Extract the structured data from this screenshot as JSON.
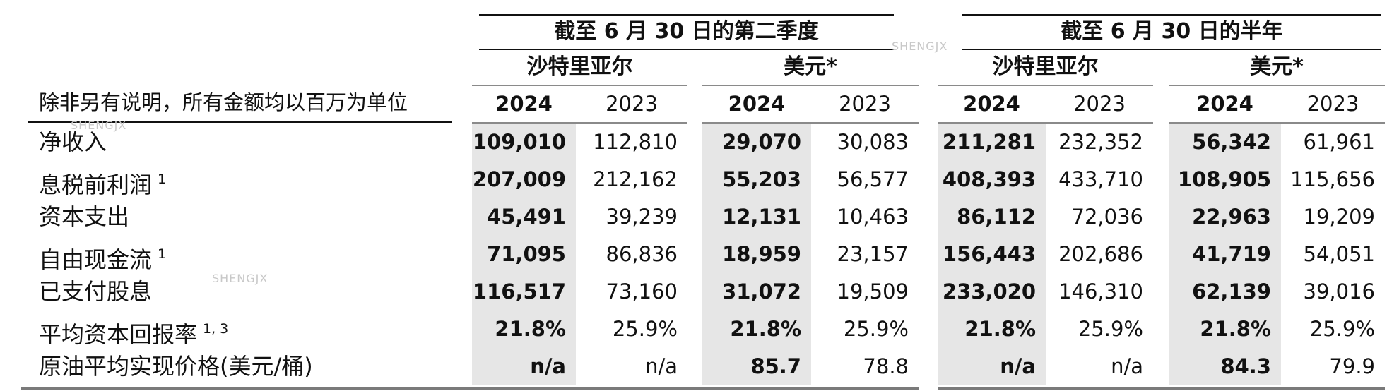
{
  "unit_note": "除非另有说明，所有金额均以百万为单位",
  "watermark": "SHENGJX",
  "groups": [
    {
      "title": "截至 6 月 30 日的第二季度",
      "currencies": [
        "沙特里亚尔",
        "美元*"
      ],
      "years": [
        "2024",
        "2023",
        "2024",
        "2023"
      ]
    },
    {
      "title": "截至 6 月 30 日的半年",
      "currencies": [
        "沙特里亚尔",
        "美元*"
      ],
      "years": [
        "2024",
        "2023",
        "2024",
        "2023"
      ]
    }
  ],
  "rows": [
    {
      "label": "净收入",
      "sup": "",
      "values": [
        "109,010",
        "112,810",
        "29,070",
        "30,083",
        "211,281",
        "232,352",
        "56,342",
        "61,961"
      ]
    },
    {
      "label": "息税前利润",
      "sup": "1",
      "values": [
        "207,009",
        "212,162",
        "55,203",
        "56,577",
        "408,393",
        "433,710",
        "108,905",
        "115,656"
      ]
    },
    {
      "label": "资本支出",
      "sup": "",
      "values": [
        "45,491",
        "39,239",
        "12,131",
        "10,463",
        "86,112",
        "72,036",
        "22,963",
        "19,209"
      ]
    },
    {
      "label": "自由现金流",
      "sup": "1",
      "values": [
        "71,095",
        "86,836",
        "18,959",
        "23,157",
        "156,443",
        "202,686",
        "41,719",
        "54,051"
      ]
    },
    {
      "label": "已支付股息",
      "sup": "",
      "values": [
        "116,517",
        "73,160",
        "31,072",
        "19,509",
        "233,020",
        "146,310",
        "62,139",
        "39,016"
      ]
    },
    {
      "label": "平均资本回报率",
      "sup": "1, 3",
      "values": [
        "21.8%",
        "25.9%",
        "21.8%",
        "25.9%",
        "21.8%",
        "25.9%",
        "21.8%",
        "25.9%"
      ]
    },
    {
      "label": "原油平均实现价格(美元/桶)",
      "sup": "",
      "values": [
        "n/a",
        "n/a",
        "85.7",
        "78.8",
        "n/a",
        "n/a",
        "84.3",
        "79.9"
      ]
    }
  ]
}
